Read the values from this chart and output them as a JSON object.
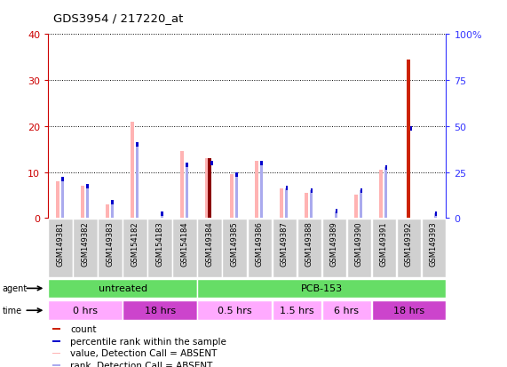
{
  "title": "GDS3954 / 217220_at",
  "samples": [
    "GSM149381",
    "GSM149382",
    "GSM149383",
    "GSM154182",
    "GSM154183",
    "GSM154184",
    "GSM149384",
    "GSM149385",
    "GSM149386",
    "GSM149387",
    "GSM149388",
    "GSM149389",
    "GSM149390",
    "GSM149391",
    "GSM149392",
    "GSM149393"
  ],
  "count_values": [
    0,
    0,
    0,
    0,
    0,
    0,
    13,
    0,
    0,
    0,
    0,
    0,
    0,
    0,
    34.5,
    0
  ],
  "count_is_dark": [
    false,
    false,
    false,
    false,
    false,
    false,
    true,
    false,
    false,
    false,
    false,
    false,
    false,
    false,
    false,
    false
  ],
  "percentile_values": [
    8.5,
    7,
    3.5,
    16,
    1,
    11.5,
    12,
    9.5,
    12,
    6.5,
    6,
    1.5,
    6,
    11,
    19.5,
    1
  ],
  "value_absent": [
    8,
    7,
    3,
    21,
    0,
    14.5,
    13,
    9.5,
    12.5,
    6.5,
    5.5,
    0,
    5,
    10.5,
    0,
    0
  ],
  "rank_absent": [
    8.5,
    7,
    3.5,
    16,
    1,
    11.5,
    0,
    9.5,
    12,
    6.5,
    6,
    1.5,
    6,
    11,
    0,
    1
  ],
  "ylim_left": [
    0,
    40
  ],
  "yticks_left": [
    0,
    10,
    20,
    30,
    40
  ],
  "yticks_right_labels": [
    "0",
    "25",
    "50",
    "75",
    "100%"
  ],
  "yticks_right_vals": [
    0,
    10,
    20,
    30,
    40
  ],
  "agent_groups": [
    {
      "label": "untreated",
      "start": 0,
      "end": 6
    },
    {
      "label": "PCB-153",
      "start": 6,
      "end": 16
    }
  ],
  "time_groups": [
    {
      "label": "0 hrs",
      "start": 0,
      "end": 3,
      "dark": false
    },
    {
      "label": "18 hrs",
      "start": 3,
      "end": 6,
      "dark": true
    },
    {
      "label": "0.5 hrs",
      "start": 6,
      "end": 9,
      "dark": false
    },
    {
      "label": "1.5 hrs",
      "start": 9,
      "end": 11,
      "dark": false
    },
    {
      "label": "6 hrs",
      "start": 11,
      "end": 13,
      "dark": false
    },
    {
      "label": "18 hrs",
      "start": 13,
      "end": 16,
      "dark": true
    }
  ],
  "bg_color": "#ffffff",
  "left_axis_color": "#cc0000",
  "right_axis_color": "#3333ff",
  "count_color": "#cc2200",
  "count_dark_color": "#8b0000",
  "pink_color": "#ffb3b3",
  "blue_color": "#0000cc",
  "light_blue_color": "#aaaaee",
  "green_color": "#66dd66",
  "pink_time_color": "#ffaaff",
  "purple_time_color": "#cc44cc"
}
